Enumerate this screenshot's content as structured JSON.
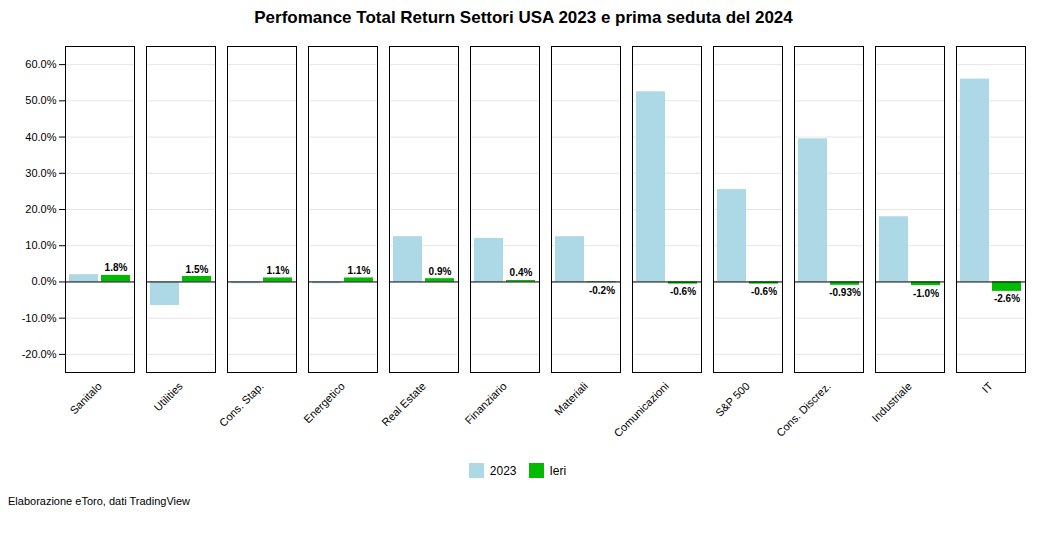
{
  "chart_data": {
    "type": "bar",
    "title": "Perfomance Total Return Settori USA 2023 e prima seduta del 2024",
    "caption": "Elaborazione eToro, dati TradingView",
    "categories": [
      "Sanitalo",
      "Utilities",
      "Cons. Stap.",
      "Energetico",
      "Real Estate",
      "Finanziario",
      "Materiali",
      "Comunicazioni",
      "S&P 500",
      "Cons. Discrez.",
      "Industriale",
      "IT"
    ],
    "series": [
      {
        "name": "2023",
        "color": "#add8e6",
        "values": [
          2.0,
          -6.5,
          -0.5,
          -0.5,
          12.5,
          12.0,
          12.5,
          52.5,
          25.5,
          39.5,
          18.0,
          56.0
        ]
      },
      {
        "name": "Ieri",
        "color": "#00bb00",
        "data_labels": true,
        "values": [
          1.8,
          1.5,
          1.1,
          1.1,
          0.9,
          0.4,
          -0.2,
          -0.6,
          -0.6,
          -0.93,
          -1.0,
          -2.6
        ],
        "value_labels": [
          "1.8%",
          "1.5%",
          "1.1%",
          "1.1%",
          "0.9%",
          "0.4%",
          "-0.2%",
          "-0.6%",
          "-0.6%",
          "-0.93%",
          "-1.0%",
          "-2.6%"
        ]
      }
    ],
    "ylim": [
      -25,
      65
    ],
    "yticks": [
      {
        "value": -20,
        "label": "-20.0%"
      },
      {
        "value": -10,
        "label": "-10.0%"
      },
      {
        "value": 0,
        "label": "0.0%"
      },
      {
        "value": 10,
        "label": "10.0%"
      },
      {
        "value": 20,
        "label": "20.0%"
      },
      {
        "value": 30,
        "label": "30.0%"
      },
      {
        "value": 40,
        "label": "40.0%"
      },
      {
        "value": 50,
        "label": "50.0%"
      },
      {
        "value": 60,
        "label": "60.0%"
      }
    ],
    "grid": true,
    "legend": "bottom"
  }
}
